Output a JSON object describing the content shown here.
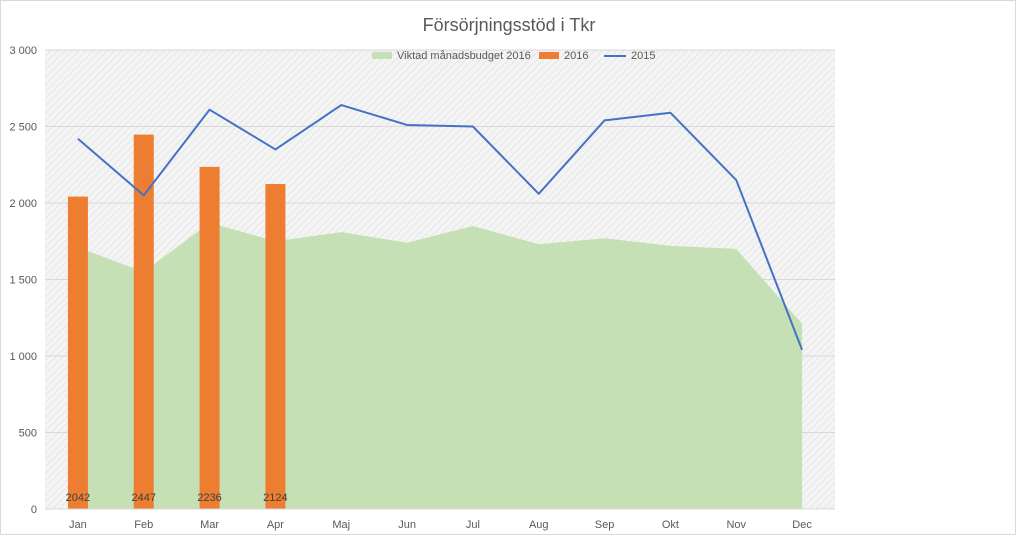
{
  "chart_data": {
    "type": "bar",
    "title": "Försörjningsstöd i Tkr",
    "xlabel": "",
    "ylabel": "",
    "categories": [
      "Jan",
      "Feb",
      "Mar",
      "Apr",
      "Maj",
      "Jun",
      "Jul",
      "Aug",
      "Sep",
      "Okt",
      "Nov",
      "Dec"
    ],
    "ylim": [
      0,
      3000
    ],
    "yticks": [
      0,
      500,
      1000,
      1500,
      2000,
      2500,
      3000
    ],
    "ytick_labels": [
      "0",
      "500",
      "1 000",
      "1 500",
      "2 000",
      "2 500",
      "3 000"
    ],
    "grid": true,
    "legend_position": "top",
    "series": [
      {
        "name": "Viktad månadsbudget 2016",
        "type": "area",
        "color": "#c5e0b4",
        "values": [
          1710,
          1550,
          1870,
          1750,
          1810,
          1740,
          1850,
          1730,
          1770,
          1720,
          1700,
          1210
        ]
      },
      {
        "name": "2016",
        "type": "bar",
        "color": "#ed7d31",
        "values": [
          2042,
          2447,
          2236,
          2124,
          null,
          null,
          null,
          null,
          null,
          null,
          null,
          null
        ],
        "data_labels": [
          "2042",
          "2447",
          "2236",
          "2124"
        ]
      },
      {
        "name": "2015",
        "type": "line",
        "color": "#4472c4",
        "values": [
          2420,
          2050,
          2610,
          2350,
          2640,
          2510,
          2500,
          2060,
          2540,
          2590,
          2150,
          1040
        ]
      }
    ]
  }
}
